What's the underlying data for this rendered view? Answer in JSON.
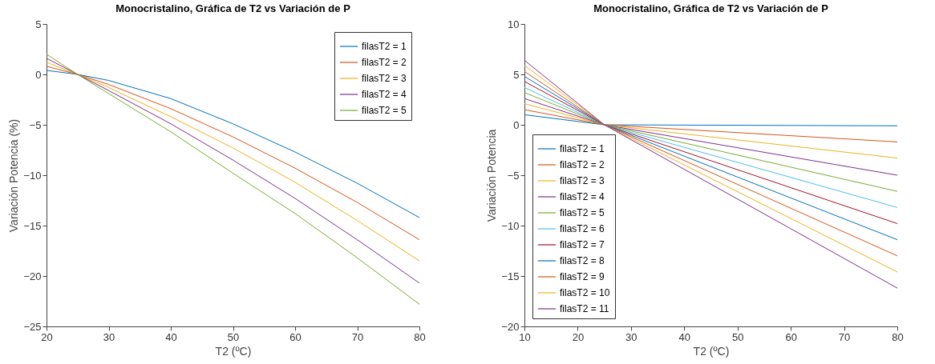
{
  "chart_data": [
    {
      "type": "line",
      "title": "Monocristalino, Gráfica de T2 vs Variación de P",
      "xlabel": "T2 (ºC)",
      "ylabel": "Variación Potencia (%)",
      "x": [
        20,
        25,
        30,
        40,
        50,
        60,
        70,
        80
      ],
      "xlim": [
        20,
        80
      ],
      "xticks": [
        20,
        30,
        40,
        50,
        60,
        70,
        80
      ],
      "ylim": [
        -25,
        5
      ],
      "yticks": [
        -25,
        -20,
        -15,
        -10,
        -5,
        0,
        5
      ],
      "legend": "top right",
      "series": [
        {
          "name": "filasT2 = 1",
          "color": "#0072bd",
          "values": [
            0.4,
            0,
            -0.6,
            -2.4,
            -4.9,
            -7.7,
            -10.8,
            -14.2
          ]
        },
        {
          "name": "filasT2 = 2",
          "color": "#d95319",
          "values": [
            0.8,
            0,
            -1.0,
            -3.4,
            -6.2,
            -9.3,
            -12.7,
            -16.4
          ]
        },
        {
          "name": "filasT2 = 3",
          "color": "#edb120",
          "values": [
            1.2,
            0,
            -1.3,
            -4.2,
            -7.3,
            -10.7,
            -14.5,
            -18.5
          ]
        },
        {
          "name": "filasT2 = 4",
          "color": "#7e2f8e",
          "values": [
            1.6,
            0,
            -1.6,
            -4.9,
            -8.5,
            -12.3,
            -16.4,
            -20.7
          ]
        },
        {
          "name": "filasT2 = 5",
          "color": "#77ac30",
          "values": [
            2.0,
            0,
            -1.9,
            -5.7,
            -9.8,
            -13.8,
            -18.2,
            -22.8
          ]
        }
      ]
    },
    {
      "type": "line",
      "title": "Monocristalino, Gráfica de T2 vs Variación de P",
      "xlabel": "T2 (ºC)",
      "ylabel": "Variación Potencia",
      "x": [
        10,
        25,
        80
      ],
      "xlim": [
        10,
        80
      ],
      "xticks": [
        10,
        20,
        30,
        40,
        50,
        60,
        70,
        80
      ],
      "ylim": [
        -20,
        10
      ],
      "yticks": [
        -20,
        -15,
        -10,
        -5,
        0,
        5,
        10
      ],
      "legend": "bottom left",
      "series": [
        {
          "name": "filasT2 = 1",
          "color": "#0072bd",
          "values": [
            1.0,
            0,
            -0.1
          ]
        },
        {
          "name": "filasT2 = 2",
          "color": "#d95319",
          "values": [
            1.5,
            0,
            -1.7
          ]
        },
        {
          "name": "filasT2 = 3",
          "color": "#edb120",
          "values": [
            2.1,
            0,
            -3.3
          ]
        },
        {
          "name": "filasT2 = 4",
          "color": "#7e2f8e",
          "values": [
            2.6,
            0,
            -5.0
          ]
        },
        {
          "name": "filasT2 = 5",
          "color": "#77ac30",
          "values": [
            3.2,
            0,
            -6.6
          ]
        },
        {
          "name": "filasT2 = 6",
          "color": "#4dbeee",
          "values": [
            3.7,
            0,
            -8.2
          ]
        },
        {
          "name": "filasT2 = 7",
          "color": "#a2142f",
          "values": [
            4.3,
            0,
            -9.8
          ]
        },
        {
          "name": "filasT2 = 8",
          "color": "#0072bd",
          "values": [
            4.8,
            0,
            -11.4
          ]
        },
        {
          "name": "filasT2 = 9",
          "color": "#d95319",
          "values": [
            5.3,
            0,
            -13.0
          ]
        },
        {
          "name": "filasT2 = 10",
          "color": "#edb120",
          "values": [
            5.9,
            0,
            -14.6
          ]
        },
        {
          "name": "filasT2 = 11",
          "color": "#7e2f8e",
          "values": [
            6.4,
            0,
            -16.2
          ]
        }
      ]
    }
  ]
}
